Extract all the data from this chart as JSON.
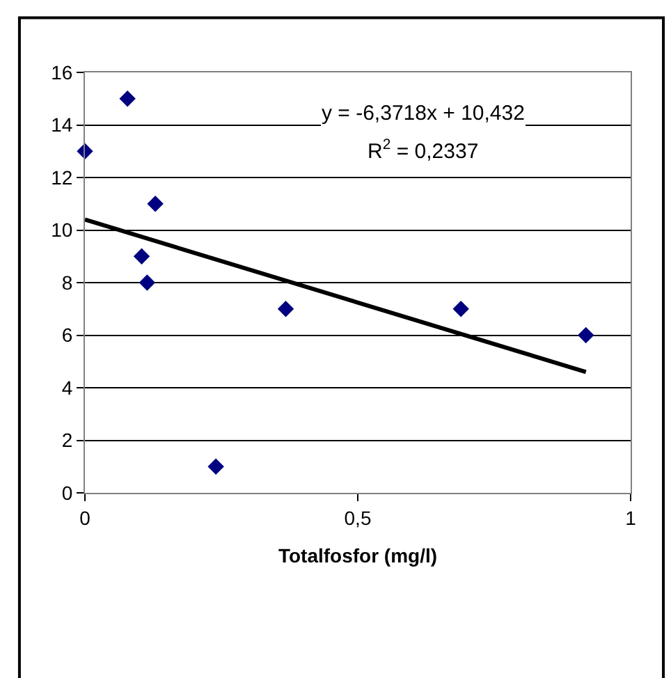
{
  "chart_data": {
    "type": "scatter",
    "xlabel": "Totalfosfor (mg/l)",
    "series": [
      {
        "color": "#000080",
        "marker": "diamond",
        "x": [
          0,
          0.078,
          0.104,
          0.114,
          0.129,
          0.24,
          0.368,
          0.689,
          0.918
        ],
        "values": [
          13,
          15,
          9,
          8,
          11,
          1,
          7,
          7,
          6
        ]
      },
      {
        "type": "line",
        "color": "#000000",
        "marker": "none",
        "x": [
          0,
          0.918
        ],
        "values": [
          10.4,
          4.6
        ]
      }
    ],
    "annotations": [
      "y = -6,3718x + 10,432",
      "R$^{2}$ = 0,2337"
    ],
    "xlim": [
      0,
      1
    ],
    "xticks": [
      0,
      {
        "value": 0.5,
        "label": "0,5"
      },
      1
    ],
    "ylim": [
      0,
      16
    ],
    "yticks": [
      0,
      2,
      4,
      6,
      8,
      10,
      12,
      14,
      16
    ],
    "grid": "y"
  }
}
